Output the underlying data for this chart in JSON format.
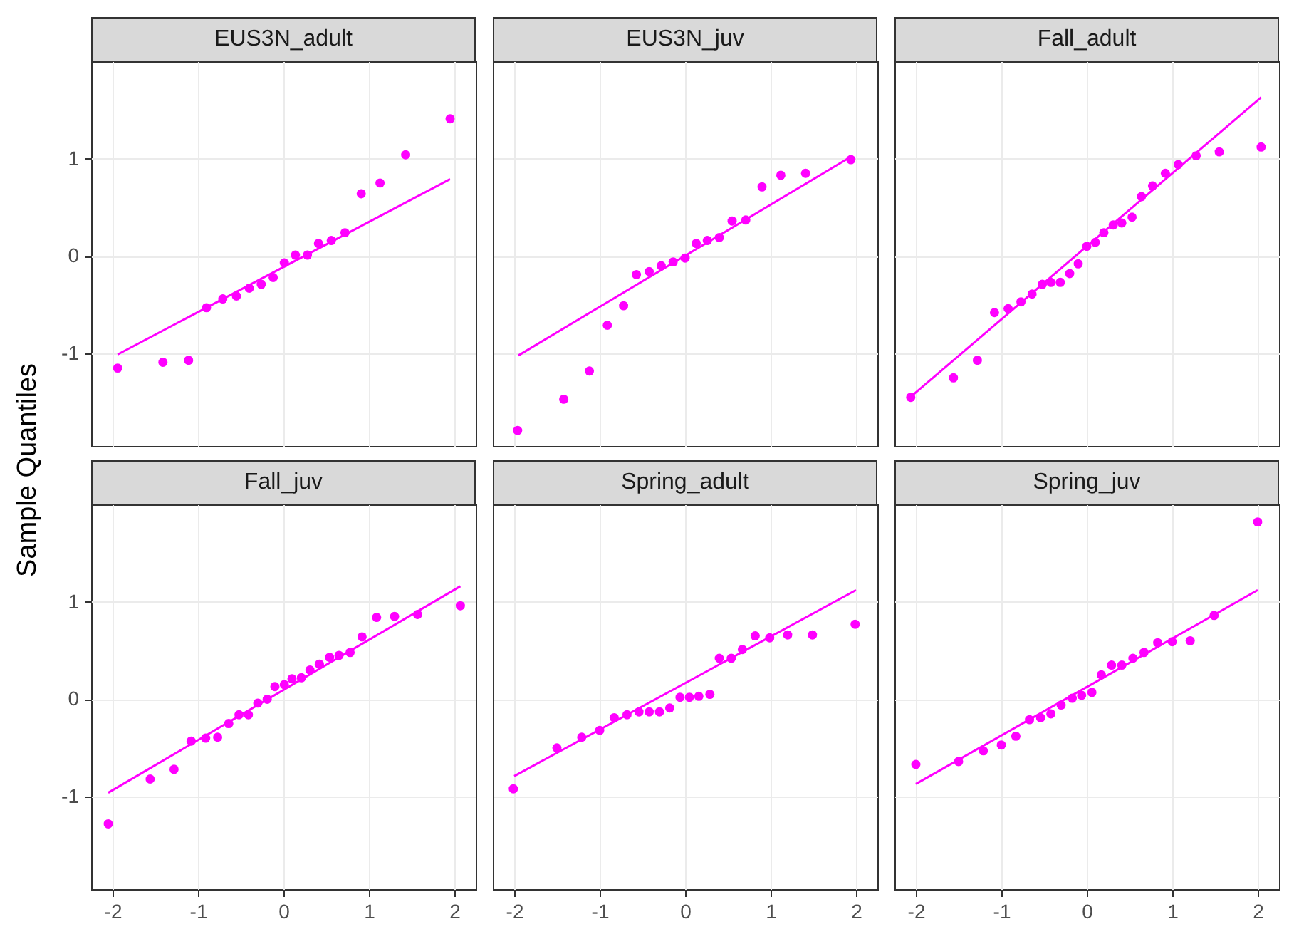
{
  "chart_data": [
    {
      "type": "scatter",
      "title": "EUS3N_adult",
      "ylabel": "Sample Quantiles",
      "xlim": [
        -2.25,
        2.25
      ],
      "ylim": [
        -1.95,
        2.0
      ],
      "xticks": [
        -2,
        -1,
        0,
        1,
        2
      ],
      "yticks": [
        -1,
        0,
        1
      ],
      "grid": true,
      "tick_labels": "y",
      "series": [
        {
          "type": "scatter",
          "marker": "circle",
          "color": "#ff00ff",
          "x": [
            -1.94,
            -1.41,
            -1.11,
            -0.9,
            -0.71,
            -0.55,
            -0.4,
            -0.26,
            -0.12,
            0.01,
            0.14,
            0.28,
            0.41,
            0.56,
            0.72,
            0.91,
            1.13,
            1.43,
            1.95
          ],
          "values": [
            -1.15,
            -1.09,
            -1.07,
            -0.53,
            -0.44,
            -0.41,
            -0.33,
            -0.29,
            -0.22,
            -0.07,
            0.01,
            0.01,
            0.13,
            0.16,
            0.24,
            0.64,
            0.75,
            1.04,
            1.41
          ]
        },
        {
          "type": "line",
          "marker": "none",
          "color": "#ff00ff",
          "x": [
            -1.94,
            1.95
          ],
          "values": [
            -1.01,
            0.79
          ]
        }
      ]
    },
    {
      "type": "scatter",
      "title": "EUS3N_juv",
      "xlim": [
        -2.25,
        2.25
      ],
      "ylim": [
        -1.95,
        2.0
      ],
      "xticks": [
        -2,
        -1,
        0,
        1,
        2
      ],
      "yticks": [
        -1,
        0,
        1
      ],
      "grid": true,
      "tick_labels": false,
      "series": [
        {
          "type": "scatter",
          "marker": "circle",
          "color": "#ff00ff",
          "x": [
            -1.96,
            -1.42,
            -1.12,
            -0.91,
            -0.72,
            -0.57,
            -0.42,
            -0.28,
            -0.14,
            0,
            0.13,
            0.26,
            0.4,
            0.55,
            0.71,
            0.9,
            1.12,
            1.41,
            1.94
          ],
          "values": [
            -1.79,
            -1.47,
            -1.18,
            -0.71,
            -0.51,
            -0.19,
            -0.16,
            -0.1,
            -0.06,
            -0.02,
            0.13,
            0.16,
            0.19,
            0.36,
            0.37,
            0.71,
            0.83,
            0.85,
            0.99
          ]
        },
        {
          "type": "line",
          "marker": "none",
          "color": "#ff00ff",
          "x": [
            -1.95,
            1.94
          ],
          "values": [
            -1.02,
            1.02
          ]
        }
      ]
    },
    {
      "type": "scatter",
      "title": "Fall_adult",
      "xlim": [
        -2.25,
        2.25
      ],
      "ylim": [
        -1.95,
        2.0
      ],
      "xticks": [
        -2,
        -1,
        0,
        1,
        2
      ],
      "yticks": [
        -1,
        0,
        1
      ],
      "grid": true,
      "tick_labels": false,
      "series": [
        {
          "type": "scatter",
          "marker": "circle",
          "color": "#ff00ff",
          "x": [
            -2.06,
            -1.56,
            -1.28,
            -1.08,
            -0.92,
            -0.77,
            -0.64,
            -0.52,
            -0.42,
            -0.31,
            -0.2,
            -0.1,
            0,
            0.1,
            0.2,
            0.31,
            0.41,
            0.53,
            0.64,
            0.77,
            0.92,
            1.07,
            1.28,
            1.55,
            2.04
          ],
          "values": [
            -1.45,
            -1.25,
            -1.07,
            -0.58,
            -0.54,
            -0.47,
            -0.39,
            -0.29,
            -0.27,
            -0.27,
            -0.18,
            -0.08,
            0.1,
            0.14,
            0.24,
            0.32,
            0.34,
            0.4,
            0.61,
            0.72,
            0.85,
            0.94,
            1.03,
            1.07,
            1.12
          ]
        },
        {
          "type": "line",
          "marker": "none",
          "color": "#ff00ff",
          "x": [
            -2.04,
            2.04
          ],
          "values": [
            -1.43,
            1.63
          ]
        }
      ]
    },
    {
      "type": "scatter",
      "title": "Fall_juv",
      "xlim": [
        -2.25,
        2.25
      ],
      "ylim": [
        -1.95,
        2.0
      ],
      "xticks": [
        -2,
        -1,
        0,
        1,
        2
      ],
      "yticks": [
        -1,
        0,
        1
      ],
      "grid": true,
      "series": [
        {
          "type": "scatter",
          "marker": "circle",
          "color": "#ff00ff",
          "x": [
            -2.05,
            -1.56,
            -1.28,
            -1.08,
            -0.91,
            -0.77,
            -0.64,
            -0.52,
            -0.41,
            -0.3,
            -0.19,
            -0.1,
            0.01,
            0.1,
            0.21,
            0.31,
            0.42,
            0.54,
            0.65,
            0.78,
            0.92,
            1.09,
            1.3,
            1.57,
            2.07
          ],
          "values": [
            -1.28,
            -0.82,
            -0.72,
            -0.43,
            -0.4,
            -0.39,
            -0.25,
            -0.16,
            -0.16,
            -0.04,
            0,
            0.13,
            0.15,
            0.21,
            0.22,
            0.3,
            0.36,
            0.43,
            0.45,
            0.48,
            0.64,
            0.84,
            0.85,
            0.87,
            0.96
          ]
        },
        {
          "type": "line",
          "marker": "none",
          "color": "#ff00ff",
          "x": [
            -2.05,
            2.07
          ],
          "values": [
            -0.96,
            1.16
          ]
        }
      ]
    },
    {
      "type": "scatter",
      "title": "Spring_adult",
      "xlim": [
        -2.25,
        2.25
      ],
      "ylim": [
        -1.95,
        2.0
      ],
      "xticks": [
        -2,
        -1,
        0,
        1,
        2
      ],
      "yticks": [
        -1,
        0,
        1
      ],
      "grid": true,
      "tick_labels": "x",
      "series": [
        {
          "type": "scatter",
          "marker": "circle",
          "color": "#ff00ff",
          "x": [
            -2.01,
            -1.5,
            -1.21,
            -1,
            -0.83,
            -0.68,
            -0.54,
            -0.42,
            -0.3,
            -0.18,
            -0.06,
            0.05,
            0.16,
            0.29,
            0.4,
            0.54,
            0.67,
            0.82,
            0.99,
            1.2,
            1.49,
            1.99
          ],
          "values": [
            -0.92,
            -0.5,
            -0.39,
            -0.32,
            -0.19,
            -0.16,
            -0.13,
            -0.13,
            -0.13,
            -0.09,
            0.02,
            0.02,
            0.03,
            0.05,
            0.42,
            0.42,
            0.51,
            0.65,
            0.63,
            0.66,
            0.66,
            0.77
          ]
        },
        {
          "type": "line",
          "marker": "none",
          "color": "#ff00ff",
          "x": [
            -2,
            2
          ],
          "values": [
            -0.79,
            1.12
          ]
        }
      ]
    },
    {
      "type": "scatter",
      "title": "Spring_juv",
      "xlim": [
        -2.25,
        2.25
      ],
      "ylim": [
        -1.95,
        2.0
      ],
      "xticks": [
        -2,
        -1,
        0,
        1,
        2
      ],
      "yticks": [
        -1,
        0,
        1
      ],
      "grid": true,
      "tick_labels": "x",
      "series": [
        {
          "type": "scatter",
          "marker": "circle",
          "color": "#ff00ff",
          "x": [
            -2,
            -1.5,
            -1.21,
            -1,
            -0.83,
            -0.67,
            -0.54,
            -0.42,
            -0.3,
            -0.17,
            -0.06,
            0.06,
            0.17,
            0.29,
            0.41,
            0.54,
            0.67,
            0.83,
            1,
            1.21,
            1.49,
            2
          ],
          "values": [
            -0.67,
            -0.64,
            -0.53,
            -0.47,
            -0.38,
            -0.21,
            -0.19,
            -0.15,
            -0.06,
            0.01,
            0.04,
            0.07,
            0.25,
            0.35,
            0.35,
            0.42,
            0.48,
            0.58,
            0.59,
            0.6,
            0.86,
            1.82
          ]
        },
        {
          "type": "line",
          "marker": "none",
          "color": "#ff00ff",
          "x": [
            -2,
            2
          ],
          "values": [
            -0.87,
            1.12
          ]
        }
      ]
    }
  ]
}
